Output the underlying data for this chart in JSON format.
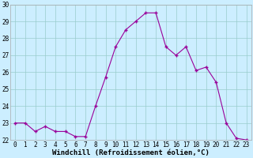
{
  "x": [
    0,
    1,
    2,
    3,
    4,
    5,
    6,
    7,
    8,
    9,
    10,
    11,
    12,
    13,
    14,
    15,
    16,
    17,
    18,
    19,
    20,
    21,
    22,
    23
  ],
  "y": [
    23.0,
    23.0,
    22.5,
    22.8,
    22.5,
    22.5,
    22.2,
    22.2,
    24.0,
    25.7,
    27.5,
    28.5,
    29.0,
    29.5,
    29.5,
    27.5,
    27.0,
    27.5,
    26.1,
    26.3,
    25.4,
    23.0,
    22.1,
    22.0
  ],
  "line_color": "#990099",
  "marker_color": "#990099",
  "bg_color": "#cceeff",
  "grid_color": "#99cccc",
  "xlabel": "Windchill (Refroidissement éolien,°C)",
  "ylim": [
    22,
    30
  ],
  "xlim_min": -0.5,
  "xlim_max": 23.5,
  "yticks": [
    22,
    23,
    24,
    25,
    26,
    27,
    28,
    29,
    30
  ],
  "xticks": [
    0,
    1,
    2,
    3,
    4,
    5,
    6,
    7,
    8,
    9,
    10,
    11,
    12,
    13,
    14,
    15,
    16,
    17,
    18,
    19,
    20,
    21,
    22,
    23
  ],
  "tick_fontsize": 5.5,
  "xlabel_fontsize": 6.5
}
